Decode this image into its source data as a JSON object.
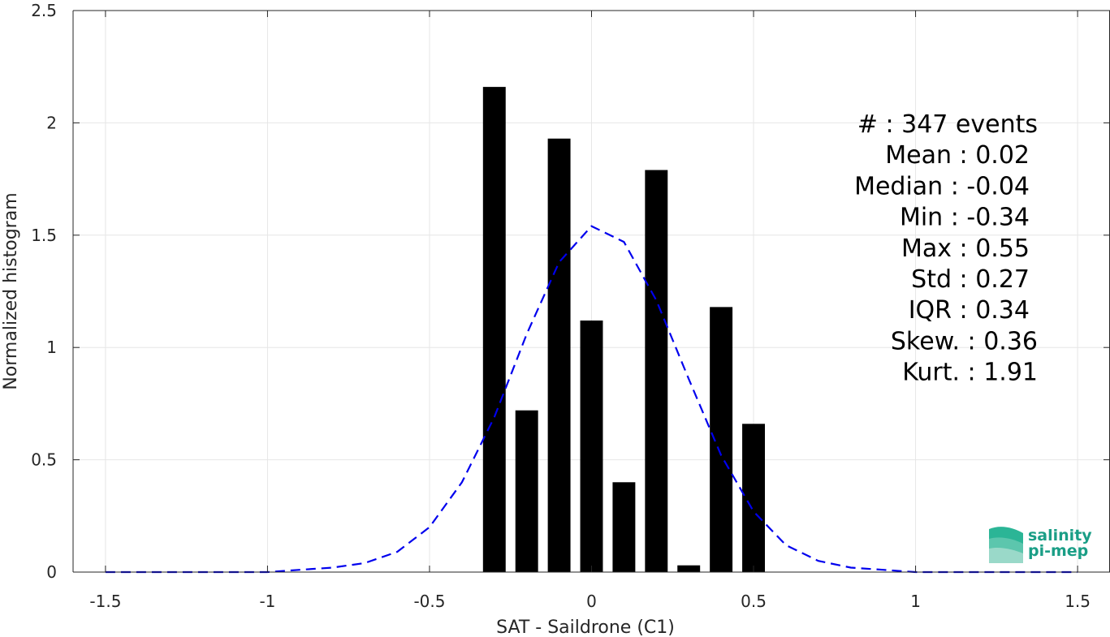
{
  "chart_data": {
    "type": "bar",
    "xlabel": "SAT - Saildrone (C1)",
    "ylabel": "Normalized histogram",
    "xlim": [
      -1.6,
      1.6
    ],
    "ylim": [
      0,
      2.5
    ],
    "xticks": [
      -1.5,
      -1,
      -0.5,
      0,
      0.5,
      1,
      1.5
    ],
    "xtick_labels": [
      "-1.5",
      "-1",
      "-0.5",
      "0",
      "0.5",
      "1",
      "1.5"
    ],
    "yticks": [
      0,
      0.5,
      1,
      1.5,
      2,
      2.5
    ],
    "ytick_labels": [
      "0",
      "0.5",
      "1",
      "1.5",
      "2",
      "2.5"
    ],
    "grid": true,
    "bar_width": 0.07,
    "bars": [
      {
        "x": -0.3,
        "value": 2.16
      },
      {
        "x": -0.2,
        "value": 0.72
      },
      {
        "x": -0.1,
        "value": 1.93
      },
      {
        "x": 0.0,
        "value": 1.12
      },
      {
        "x": 0.1,
        "value": 0.4
      },
      {
        "x": 0.2,
        "value": 1.79
      },
      {
        "x": 0.3,
        "value": 0.03
      },
      {
        "x": 0.4,
        "value": 1.18
      },
      {
        "x": 0.5,
        "value": 0.66
      }
    ],
    "fit_curve": {
      "style": "dashed",
      "color": "#0000ee",
      "x": [
        -1.5,
        -1.4,
        -1.3,
        -1.2,
        -1.1,
        -1.0,
        -0.9,
        -0.8,
        -0.7,
        -0.6,
        -0.5,
        -0.4,
        -0.3,
        -0.2,
        -0.1,
        0.0,
        0.1,
        0.2,
        0.3,
        0.4,
        0.5,
        0.6,
        0.7,
        0.8,
        0.9,
        1.0,
        1.1,
        1.2,
        1.3,
        1.4,
        1.5
      ],
      "y": [
        0.0,
        0.0,
        0.0,
        0.0,
        0.0,
        0.0,
        0.01,
        0.02,
        0.04,
        0.09,
        0.2,
        0.4,
        0.69,
        1.06,
        1.38,
        1.54,
        1.47,
        1.21,
        0.86,
        0.52,
        0.27,
        0.12,
        0.05,
        0.02,
        0.01,
        0.0,
        0.0,
        0.0,
        0.0,
        0.0,
        0.0
      ]
    },
    "stats": [
      {
        "label": "#  : 347 events"
      },
      {
        "label": "Mean : 0.02"
      },
      {
        "label": "Median : -0.04"
      },
      {
        "label": "Min : -0.34"
      },
      {
        "label": "Max : 0.55"
      },
      {
        "label": "Std : 0.27"
      },
      {
        "label": "IQR : 0.34"
      },
      {
        "label": "Skew. : 0.36"
      },
      {
        "label": "Kurt. : 1.91"
      }
    ]
  },
  "logo": {
    "line1": "salinity",
    "line2": "pi-mep",
    "colors": {
      "top": "#1fa88a",
      "bottom": "#8fd3c3",
      "text": "#1a9e86"
    }
  }
}
